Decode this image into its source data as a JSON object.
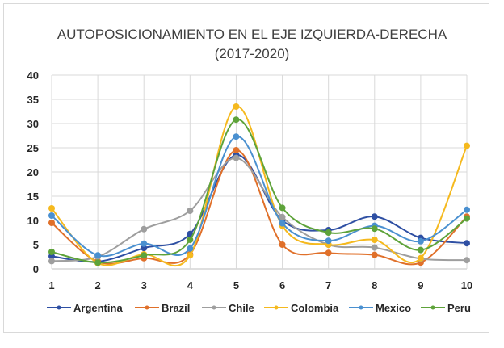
{
  "chart_data": {
    "type": "line",
    "title": "AUTOPOSICIONAMIENTO EN EL EJE IZQUIERDA-DERECHA",
    "subtitle": "(2017-2020)",
    "xlabel": "",
    "ylabel": "",
    "x": [
      1,
      2,
      3,
      4,
      5,
      6,
      7,
      8,
      9,
      10
    ],
    "ylim": [
      0,
      40
    ],
    "yticks": [
      0,
      5,
      10,
      15,
      20,
      25,
      30,
      35,
      40
    ],
    "grid": true,
    "smooth": true,
    "legend": "bottom",
    "series": [
      {
        "name": "Argentina",
        "color": "#2e4fa3",
        "values": [
          2.6,
          1.5,
          4.3,
          7.2,
          23.5,
          10.0,
          8.0,
          10.8,
          6.4,
          5.3
        ]
      },
      {
        "name": "Brazil",
        "color": "#e0702a",
        "values": [
          9.5,
          1.5,
          2.2,
          3.0,
          24.5,
          5.0,
          3.3,
          2.9,
          1.3,
          10.8
        ]
      },
      {
        "name": "Chile",
        "color": "#9e9e9e",
        "values": [
          1.6,
          2.5,
          8.2,
          12.0,
          22.9,
          10.7,
          5.0,
          4.4,
          2.1,
          1.8
        ]
      },
      {
        "name": "Colombia",
        "color": "#f5b91e",
        "values": [
          12.5,
          1.2,
          3.0,
          2.8,
          33.5,
          8.9,
          5.0,
          6.0,
          2.2,
          25.4
        ]
      },
      {
        "name": "Mexico",
        "color": "#4a90d0",
        "values": [
          11.0,
          2.8,
          5.2,
          4.2,
          27.3,
          9.4,
          5.8,
          8.9,
          5.7,
          12.2
        ]
      },
      {
        "name": "Peru",
        "color": "#5ea33a",
        "values": [
          3.5,
          1.3,
          2.8,
          6.0,
          30.8,
          12.6,
          7.5,
          8.3,
          3.9,
          10.4
        ]
      }
    ]
  }
}
